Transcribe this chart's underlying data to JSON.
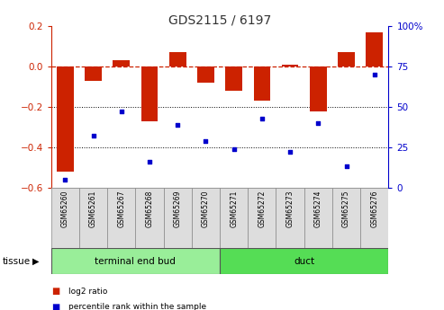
{
  "title": "GDS2115 / 6197",
  "samples": [
    "GSM65260",
    "GSM65261",
    "GSM65267",
    "GSM65268",
    "GSM65269",
    "GSM65270",
    "GSM65271",
    "GSM65272",
    "GSM65273",
    "GSM65274",
    "GSM65275",
    "GSM65276"
  ],
  "log2_ratio": [
    -0.52,
    -0.07,
    0.03,
    -0.27,
    0.07,
    -0.08,
    -0.12,
    -0.17,
    0.01,
    -0.22,
    0.07,
    0.17
  ],
  "percentile_rank": [
    5,
    32,
    47,
    16,
    39,
    29,
    24,
    43,
    22,
    40,
    13,
    70
  ],
  "bar_color": "#cc2200",
  "dot_color": "#0000cc",
  "ylim_left": [
    -0.6,
    0.2
  ],
  "ylim_right": [
    0,
    100
  ],
  "yticks_left": [
    -0.6,
    -0.4,
    -0.2,
    0.0,
    0.2
  ],
  "yticks_right": [
    0,
    25,
    50,
    75,
    100
  ],
  "ytick_labels_right": [
    "0",
    "25",
    "50",
    "75",
    "100%"
  ],
  "tissue_groups": [
    {
      "label": "terminal end bud",
      "indices": [
        0,
        1,
        2,
        3,
        4,
        5
      ],
      "color": "#99ee99"
    },
    {
      "label": "duct",
      "indices": [
        6,
        7,
        8,
        9,
        10,
        11
      ],
      "color": "#55dd55"
    }
  ],
  "tissue_label": "tissue",
  "legend_items": [
    {
      "label": "log2 ratio",
      "color": "#cc2200"
    },
    {
      "label": "percentile rank within the sample",
      "color": "#0000cc"
    }
  ],
  "hline_color": "#cc2200",
  "grid_color": "#000000",
  "bg_color": "#ffffff",
  "bar_width": 0.6
}
